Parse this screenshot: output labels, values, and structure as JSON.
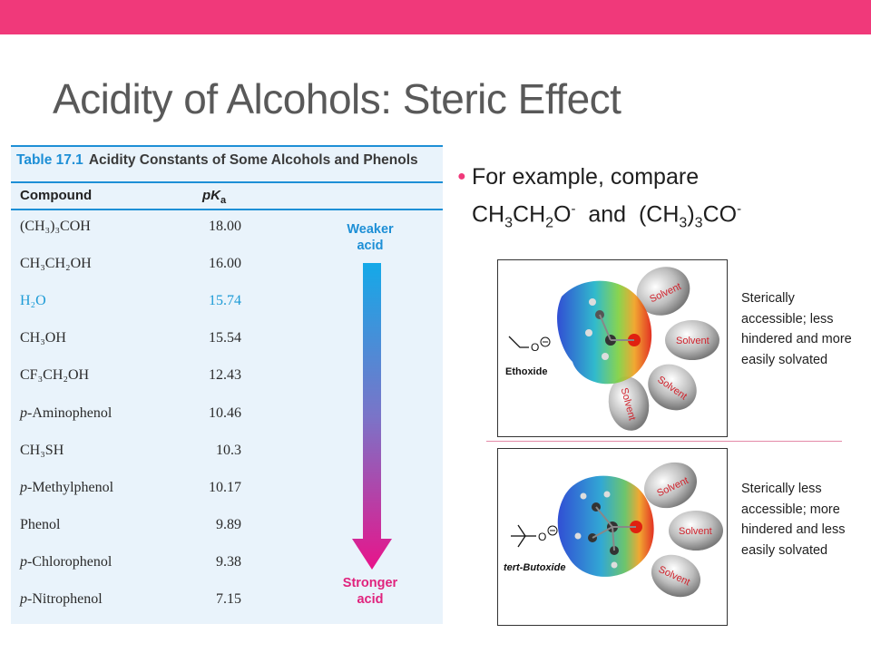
{
  "slide": {
    "title": "Acidity of Alcohols: Steric Effect",
    "accent_color": "#f0397a"
  },
  "table": {
    "number": "Table 17.1",
    "caption": "Acidity Constants of Some Alcohols and Phenols",
    "col_compound": "Compound",
    "col_pka": "pK",
    "col_pka_sub": "a",
    "rows": [
      {
        "compound": "(CH₃)₃COH",
        "pka": "18.00"
      },
      {
        "compound": "CH₃CH₂OH",
        "pka": "16.00"
      },
      {
        "compound": "H₂O",
        "pka": "15.74"
      },
      {
        "compound": "CH₃OH",
        "pka": "15.54"
      },
      {
        "compound": "CF₃CH₂OH",
        "pka": "12.43"
      },
      {
        "compound": "p-Aminophenol",
        "pka": "10.46"
      },
      {
        "compound": "CH₃SH",
        "pka": "10.3"
      },
      {
        "compound": "p-Methylphenol",
        "pka": "10.17"
      },
      {
        "compound": "Phenol",
        "pka": "9.89"
      },
      {
        "compound": "p-Chlorophenol",
        "pka": "9.38"
      },
      {
        "compound": "p-Nitrophenol",
        "pka": "7.15"
      }
    ],
    "weaker_label_1": "Weaker",
    "weaker_label_2": "acid",
    "stronger_label_1": "Stronger",
    "stronger_label_2": "acid",
    "arrow_top_color": "#14a9e8",
    "arrow_bottom_color": "#e8148a"
  },
  "bullet": {
    "line1": "For example,  compare",
    "line2_a": "CH",
    "line2_a_sub1": "3",
    "line2_b": "CH",
    "line2_b_sub": "2",
    "line2_c": "O",
    "line2_c_sup": "-",
    "line2_and": "  and  (CH",
    "line2_d_sub": "3",
    "line2_e": ")",
    "line2_e_sub": "3",
    "line2_f": "CO",
    "line2_f_sup": "-"
  },
  "panels": {
    "ethoxide_label": "Ethoxide",
    "tbutoxide_label": "tert-Butoxide",
    "solvent_label": "Solvent",
    "note1": "Sterically accessible; less hindered and more easily solvated",
    "note2": "Sterically less accessible; more hindered and less easily solvated"
  }
}
